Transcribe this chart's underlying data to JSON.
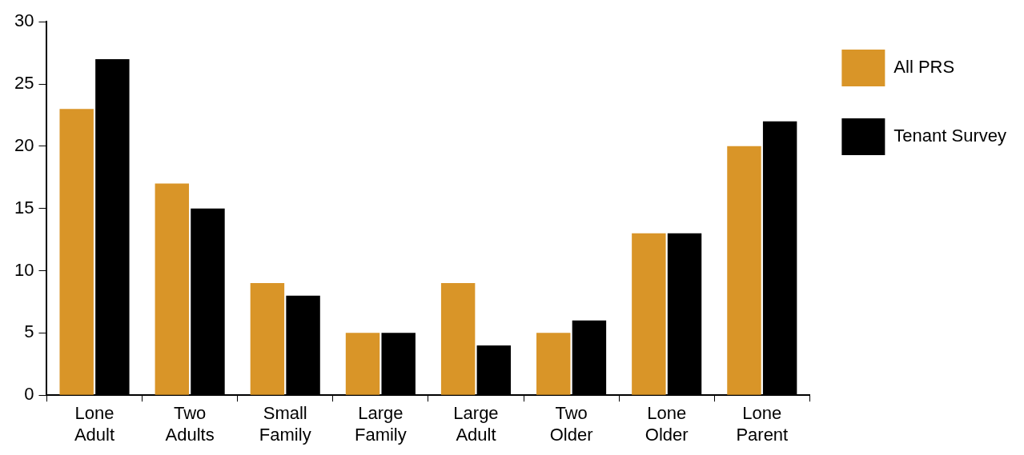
{
  "chart_data": {
    "type": "bar",
    "categories": [
      "Lone Adult",
      "Two Adults",
      "Small Family",
      "Large Family",
      "Large Adult",
      "Two Older",
      "Lone Older",
      "Lone Parent"
    ],
    "series": [
      {
        "name": "All PRS",
        "color": "#d99528",
        "values": [
          23,
          17,
          9,
          5,
          9,
          5,
          13,
          20
        ]
      },
      {
        "name": "Tenant Survey",
        "color": "#000000",
        "values": [
          27,
          15,
          8,
          5,
          4,
          6,
          13,
          22
        ]
      }
    ],
    "ylim": [
      0,
      30
    ],
    "yticks": [
      0,
      5,
      10,
      15,
      20,
      25,
      30
    ],
    "grid": false,
    "legend": "top right"
  }
}
